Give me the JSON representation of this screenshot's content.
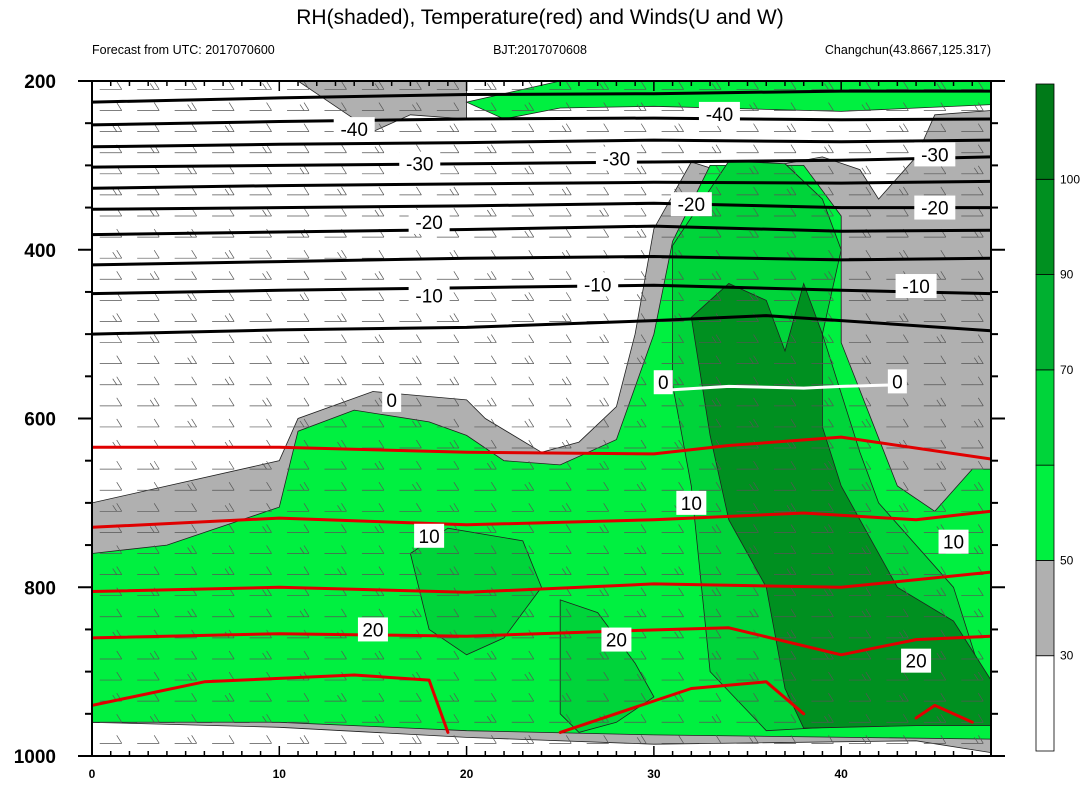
{
  "header": {
    "title": "RH(shaded), Temperature(red) and Winds(U and W)",
    "forecast": "Forecast from UTC: 2017070600",
    "bjt": "BJT:2017070608",
    "station": "Changchun(43.8667,125.317)"
  },
  "chart_data": {
    "type": "heatmap",
    "title": "RH(shaded), Temperature(red) and Winds(U and W)",
    "x": {
      "min": 0,
      "max": 48,
      "ticks": [
        0,
        10,
        20,
        30,
        40
      ],
      "tick_labels": [
        "0",
        "10",
        "20",
        "30",
        "40"
      ]
    },
    "y": {
      "min": 200,
      "max": 1000,
      "reverse": true,
      "ticks": [
        200,
        400,
        600,
        800,
        1000
      ],
      "tick_labels": [
        "200",
        "400",
        "600",
        "800",
        "1000"
      ]
    },
    "rh_colorbar": {
      "labels": [
        "30",
        "50",
        "70",
        "90",
        "100"
      ],
      "colors": [
        "#ffffff",
        "#b0b0b0",
        "#00f040",
        "#00d43a",
        "#00b030",
        "#009020",
        "#007a18"
      ]
    },
    "temperature_contours": [
      {
        "value": -40,
        "label": "-40",
        "color": "#000000",
        "points": [
          [
            0,
            225
          ],
          [
            10,
            220
          ],
          [
            20,
            216
          ],
          [
            30,
            215
          ],
          [
            40,
            212
          ],
          [
            48,
            212
          ]
        ]
      },
      {
        "value": -40,
        "label": "",
        "color": "#000000",
        "points": [
          [
            0,
            252
          ],
          [
            10,
            248
          ],
          [
            20,
            245
          ],
          [
            30,
            244
          ],
          [
            40,
            246
          ],
          [
            48,
            245
          ]
        ]
      },
      {
        "value": -30,
        "label": "-30",
        "color": "#000000",
        "points": [
          [
            0,
            278
          ],
          [
            10,
            275
          ],
          [
            20,
            273
          ],
          [
            30,
            270
          ],
          [
            40,
            272
          ],
          [
            48,
            270
          ]
        ]
      },
      {
        "value": -30,
        "label": "",
        "color": "#000000",
        "points": [
          [
            0,
            302
          ],
          [
            10,
            300
          ],
          [
            20,
            298
          ],
          [
            30,
            296
          ],
          [
            40,
            294
          ],
          [
            48,
            290
          ]
        ]
      },
      {
        "value": -20,
        "label": "-20",
        "color": "#000000",
        "points": [
          [
            0,
            327
          ],
          [
            10,
            324
          ],
          [
            20,
            322
          ],
          [
            30,
            320
          ],
          [
            40,
            321
          ],
          [
            48,
            319
          ]
        ]
      },
      {
        "value": -20,
        "label": "",
        "color": "#000000",
        "points": [
          [
            0,
            352
          ],
          [
            10,
            350
          ],
          [
            20,
            348
          ],
          [
            30,
            345
          ],
          [
            40,
            350
          ],
          [
            48,
            350
          ]
        ]
      },
      {
        "value": -20,
        "label": "",
        "color": "#000000",
        "points": [
          [
            0,
            382
          ],
          [
            10,
            379
          ],
          [
            20,
            376
          ],
          [
            30,
            372
          ],
          [
            40,
            378
          ],
          [
            48,
            377
          ]
        ]
      },
      {
        "value": -10,
        "label": "-10",
        "color": "#000000",
        "points": [
          [
            0,
            418
          ],
          [
            10,
            414
          ],
          [
            20,
            410
          ],
          [
            30,
            408
          ],
          [
            40,
            412
          ],
          [
            48,
            410
          ]
        ]
      },
      {
        "value": -10,
        "label": "",
        "color": "#000000",
        "points": [
          [
            0,
            452
          ],
          [
            10,
            448
          ],
          [
            20,
            445
          ],
          [
            30,
            442
          ],
          [
            40,
            448
          ],
          [
            48,
            452
          ]
        ]
      },
      {
        "value": -10,
        "label": "",
        "color": "#000000",
        "points": [
          [
            0,
            500
          ],
          [
            10,
            495
          ],
          [
            20,
            492
          ],
          [
            30,
            484
          ],
          [
            36,
            478
          ],
          [
            40,
            484
          ],
          [
            48,
            496
          ]
        ]
      },
      {
        "value": 0,
        "label": "0",
        "color": "#ffffff",
        "points": [
          [
            10,
            568
          ],
          [
            14,
            562
          ],
          [
            18,
            566
          ],
          [
            20,
            570
          ]
        ]
      },
      {
        "value": 0,
        "label": "",
        "color": "#ffffff",
        "points": [
          [
            31,
            566
          ],
          [
            34,
            562
          ],
          [
            38,
            564
          ],
          [
            40,
            562
          ],
          [
            43,
            560
          ]
        ]
      },
      {
        "value": 10,
        "label": "",
        "color": "#e00000",
        "points": [
          [
            0,
            634
          ],
          [
            10,
            634
          ],
          [
            20,
            640
          ],
          [
            30,
            642
          ],
          [
            34,
            632
          ],
          [
            40,
            622
          ],
          [
            48,
            648
          ]
        ]
      },
      {
        "value": 10,
        "label": "10",
        "color": "#e00000",
        "points": [
          [
            0,
            729
          ],
          [
            10,
            718
          ],
          [
            20,
            726
          ],
          [
            30,
            720
          ],
          [
            38,
            712
          ],
          [
            44,
            720
          ],
          [
            48,
            710
          ]
        ]
      },
      {
        "value": 20,
        "label": "",
        "color": "#e00000",
        "points": [
          [
            0,
            805
          ],
          [
            10,
            800
          ],
          [
            20,
            806
          ],
          [
            30,
            796
          ],
          [
            40,
            800
          ],
          [
            48,
            782
          ]
        ]
      },
      {
        "value": 20,
        "label": "20",
        "color": "#e00000",
        "points": [
          [
            0,
            860
          ],
          [
            10,
            855
          ],
          [
            20,
            858
          ],
          [
            28,
            852
          ],
          [
            34,
            848
          ],
          [
            40,
            880
          ],
          [
            44,
            862
          ],
          [
            48,
            858
          ]
        ]
      },
      {
        "value": 20,
        "label": "",
        "color": "#e00000",
        "points": [
          [
            0,
            940
          ],
          [
            6,
            912
          ],
          [
            14,
            904
          ],
          [
            18,
            910
          ],
          [
            19,
            972
          ]
        ]
      },
      {
        "value": 20,
        "label": "",
        "color": "#e00000",
        "points": [
          [
            25,
            972
          ],
          [
            32,
            920
          ],
          [
            36,
            912
          ],
          [
            38,
            950
          ]
        ]
      },
      {
        "value": 20,
        "label": "",
        "color": "#e00000",
        "points": [
          [
            44,
            955
          ],
          [
            45,
            940
          ],
          [
            47,
            960
          ]
        ]
      }
    ],
    "contour_labels": [
      {
        "text": "-40",
        "x": 14,
        "y": 257
      },
      {
        "text": "-40",
        "x": 33.5,
        "y": 239
      },
      {
        "text": "-30",
        "x": 17.5,
        "y": 298
      },
      {
        "text": "-30",
        "x": 28,
        "y": 292
      },
      {
        "text": "-30",
        "x": 45,
        "y": 287
      },
      {
        "text": "-20",
        "x": 18,
        "y": 367
      },
      {
        "text": "-20",
        "x": 32,
        "y": 346
      },
      {
        "text": "-20",
        "x": 45,
        "y": 350
      },
      {
        "text": "-10",
        "x": 18,
        "y": 454
      },
      {
        "text": "-10",
        "x": 27,
        "y": 441
      },
      {
        "text": "-10",
        "x": 44,
        "y": 443
      },
      {
        "text": "0",
        "x": 16,
        "y": 578
      },
      {
        "text": "0",
        "x": 30.5,
        "y": 557
      },
      {
        "text": "0",
        "x": 43,
        "y": 556
      },
      {
        "text": "10",
        "x": 18,
        "y": 739
      },
      {
        "text": "10",
        "x": 32,
        "y": 700
      },
      {
        "text": "10",
        "x": 46,
        "y": 746
      },
      {
        "text": "20",
        "x": 15,
        "y": 850
      },
      {
        "text": "20",
        "x": 28,
        "y": 862
      },
      {
        "text": "20",
        "x": 44,
        "y": 887
      }
    ],
    "rh_regions": [
      {
        "level": "30-50",
        "color": "#b0b0b0",
        "points": [
          [
            0,
            700
          ],
          [
            4,
            680
          ],
          [
            10,
            650
          ],
          [
            11,
            600
          ],
          [
            15,
            568
          ],
          [
            20,
            578
          ],
          [
            21,
            600
          ],
          [
            24,
            640
          ],
          [
            26,
            628
          ],
          [
            28,
            586
          ],
          [
            29,
            500
          ],
          [
            30,
            375
          ],
          [
            32,
            296
          ],
          [
            34,
            310
          ],
          [
            39,
            290
          ],
          [
            41,
            305
          ],
          [
            42,
            340
          ],
          [
            44,
            290
          ],
          [
            45,
            240
          ],
          [
            48,
            235
          ],
          [
            48,
            996
          ],
          [
            44,
            982
          ],
          [
            30,
            986
          ],
          [
            20,
            978
          ],
          [
            10,
            966
          ],
          [
            0,
            960
          ]
        ]
      },
      {
        "level": "30-50",
        "color": "#b0b0b0",
        "points": [
          [
            11,
            200
          ],
          [
            20,
            200
          ],
          [
            20,
            245
          ],
          [
            17,
            240
          ],
          [
            15,
            260
          ],
          [
            13,
            230
          ]
        ]
      },
      {
        "level": "50-70",
        "color": "#00f040",
        "points": [
          [
            0,
            760
          ],
          [
            4,
            750
          ],
          [
            10,
            705
          ],
          [
            11,
            615
          ],
          [
            14,
            590
          ],
          [
            18,
            604
          ],
          [
            20,
            620
          ],
          [
            22,
            650
          ],
          [
            25,
            655
          ],
          [
            28,
            625
          ],
          [
            30,
            500
          ],
          [
            31,
            390
          ],
          [
            33,
            300
          ],
          [
            38,
            300
          ],
          [
            40,
            360
          ],
          [
            40,
            510
          ],
          [
            43,
            680
          ],
          [
            45,
            710
          ],
          [
            47,
            660
          ],
          [
            48,
            660
          ],
          [
            48,
            980
          ],
          [
            30,
            975
          ],
          [
            20,
            970
          ],
          [
            10,
            960
          ],
          [
            0,
            960
          ]
        ]
      },
      {
        "level": "50-70",
        "color": "#00f040",
        "points": [
          [
            20,
            225
          ],
          [
            25,
            200
          ],
          [
            48,
            200
          ],
          [
            48,
            228
          ],
          [
            40,
            236
          ],
          [
            30,
            230
          ],
          [
            25,
            232
          ],
          [
            22,
            245
          ]
        ]
      },
      {
        "level": "70-90",
        "color": "#00d43a",
        "points": [
          [
            31,
            395
          ],
          [
            34,
            295
          ],
          [
            37,
            298
          ],
          [
            39,
            340
          ],
          [
            40,
            400
          ],
          [
            39,
            500
          ],
          [
            41,
            640
          ],
          [
            42,
            700
          ],
          [
            46,
            800
          ],
          [
            48,
            940
          ],
          [
            40,
            965
          ],
          [
            36,
            970
          ],
          [
            33,
            900
          ],
          [
            32,
            680
          ],
          [
            31,
            560
          ]
        ]
      },
      {
        "level": "70-90",
        "color": "#00d43a",
        "points": [
          [
            17,
            760
          ],
          [
            19,
            730
          ],
          [
            23,
            745
          ],
          [
            24,
            800
          ],
          [
            22,
            860
          ],
          [
            20,
            880
          ],
          [
            18,
            850
          ]
        ]
      },
      {
        "level": "70-90",
        "color": "#00d43a",
        "points": [
          [
            25,
            815
          ],
          [
            27,
            830
          ],
          [
            29,
            890
          ],
          [
            30,
            930
          ],
          [
            28,
            960
          ],
          [
            26,
            972
          ],
          [
            25,
            950
          ]
        ]
      },
      {
        "level": "90-100",
        "color": "#009020",
        "points": [
          [
            32,
            480
          ],
          [
            34,
            440
          ],
          [
            36,
            460
          ],
          [
            37,
            520
          ],
          [
            38,
            440
          ],
          [
            39,
            500
          ],
          [
            39,
            610
          ],
          [
            40,
            680
          ],
          [
            43,
            800
          ],
          [
            46,
            840
          ],
          [
            48,
            910
          ],
          [
            48,
            964
          ],
          [
            44,
            964
          ],
          [
            38,
            967
          ],
          [
            37,
            920
          ],
          [
            36,
            800
          ],
          [
            34,
            720
          ],
          [
            33,
            620
          ]
        ]
      }
    ]
  }
}
